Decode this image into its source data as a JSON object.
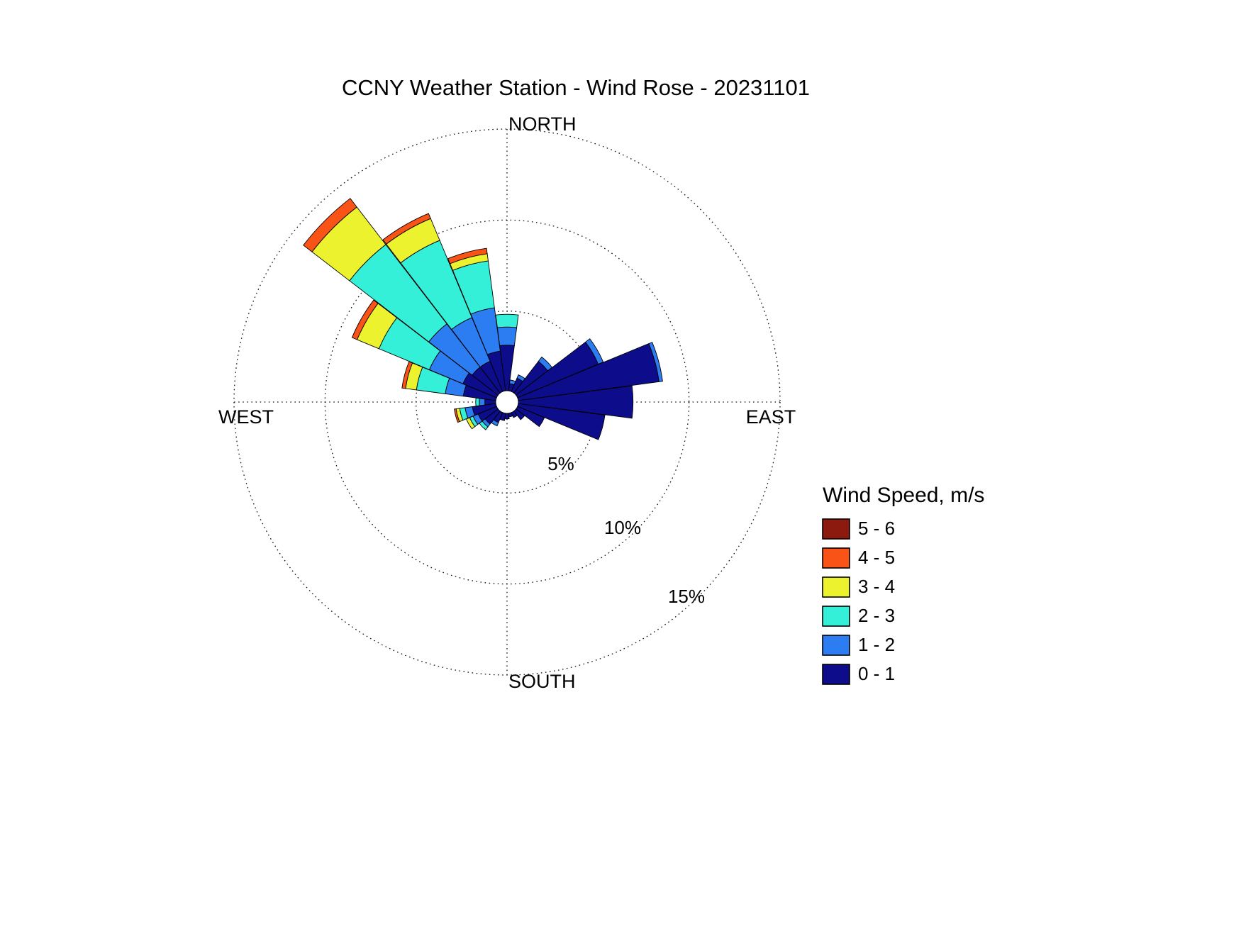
{
  "chart_data": {
    "type": "windrose",
    "title": "CCNY Weather Station - Wind Rose - 20231101",
    "legend_title": "Wind Speed, m/s",
    "compass": {
      "north": "NORTH",
      "east": "EAST",
      "south": "SOUTH",
      "west": "WEST"
    },
    "rings_percent": [
      5,
      10,
      15
    ],
    "ring_labels": [
      "5%",
      "10%",
      "15%"
    ],
    "max_percent": 15,
    "direction_step_deg": 15,
    "directions_deg": [
      0,
      15,
      30,
      45,
      60,
      75,
      90,
      105,
      120,
      135,
      150,
      165,
      180,
      195,
      210,
      225,
      240,
      255,
      270,
      285,
      300,
      315,
      330,
      345
    ],
    "series": [
      {
        "name": "0 - 1",
        "color": "#0d0d8c",
        "values": [
          2.5,
          0.4,
          0.8,
          2.2,
          4.8,
          7.8,
          6.3,
          4.8,
          1.6,
          0.6,
          0.3,
          0.2,
          0.3,
          0.4,
          0.6,
          0.9,
          1.1,
          1.3,
          0.6,
          1.8,
          2.0,
          1.8,
          1.8,
          2.2
        ]
      },
      {
        "name": "1 - 2",
        "color": "#2c7cf2",
        "values": [
          1.0,
          0.2,
          0.2,
          0.3,
          0.3,
          0.2,
          0,
          0,
          0,
          0,
          0,
          0,
          0,
          0,
          0.2,
          0.2,
          0.3,
          0.4,
          0.3,
          1.0,
          2.0,
          3.0,
          2.6,
          2.4
        ]
      },
      {
        "name": "2 - 3",
        "color": "#35f0d8",
        "values": [
          0.7,
          0,
          0,
          0,
          0,
          0,
          0,
          0,
          0,
          0,
          0,
          0,
          0,
          0,
          0,
          0.2,
          0.2,
          0.3,
          0.2,
          1.6,
          3.0,
          5.5,
          4.6,
          2.6
        ]
      },
      {
        "name": "3 - 4",
        "color": "#edf22e",
        "values": [
          0,
          0,
          0,
          0,
          0,
          0,
          0,
          0,
          0,
          0,
          0,
          0,
          0,
          0,
          0,
          0,
          0.2,
          0.2,
          0,
          0.6,
          1.3,
          2.6,
          1.3,
          0.4
        ]
      },
      {
        "name": "4 - 5",
        "color": "#fa5317",
        "values": [
          0,
          0,
          0,
          0,
          0,
          0,
          0,
          0,
          0,
          0,
          0,
          0,
          0,
          0,
          0,
          0,
          0,
          0.1,
          0,
          0.2,
          0.3,
          0.6,
          0.3,
          0.3
        ]
      },
      {
        "name": "5 - 6",
        "color": "#8c1a0f",
        "values": [
          0,
          0,
          0,
          0,
          0,
          0,
          0,
          0,
          0,
          0,
          0,
          0,
          0,
          0,
          0,
          0,
          0,
          0,
          0,
          0,
          0,
          0,
          0,
          0
        ]
      }
    ],
    "legend_order_top_to_bottom": [
      "5 - 6",
      "4 - 5",
      "3 - 4",
      "2 - 3",
      "1 - 2",
      "0 - 1"
    ],
    "grid_style": "dotted",
    "legend_position": "right"
  }
}
